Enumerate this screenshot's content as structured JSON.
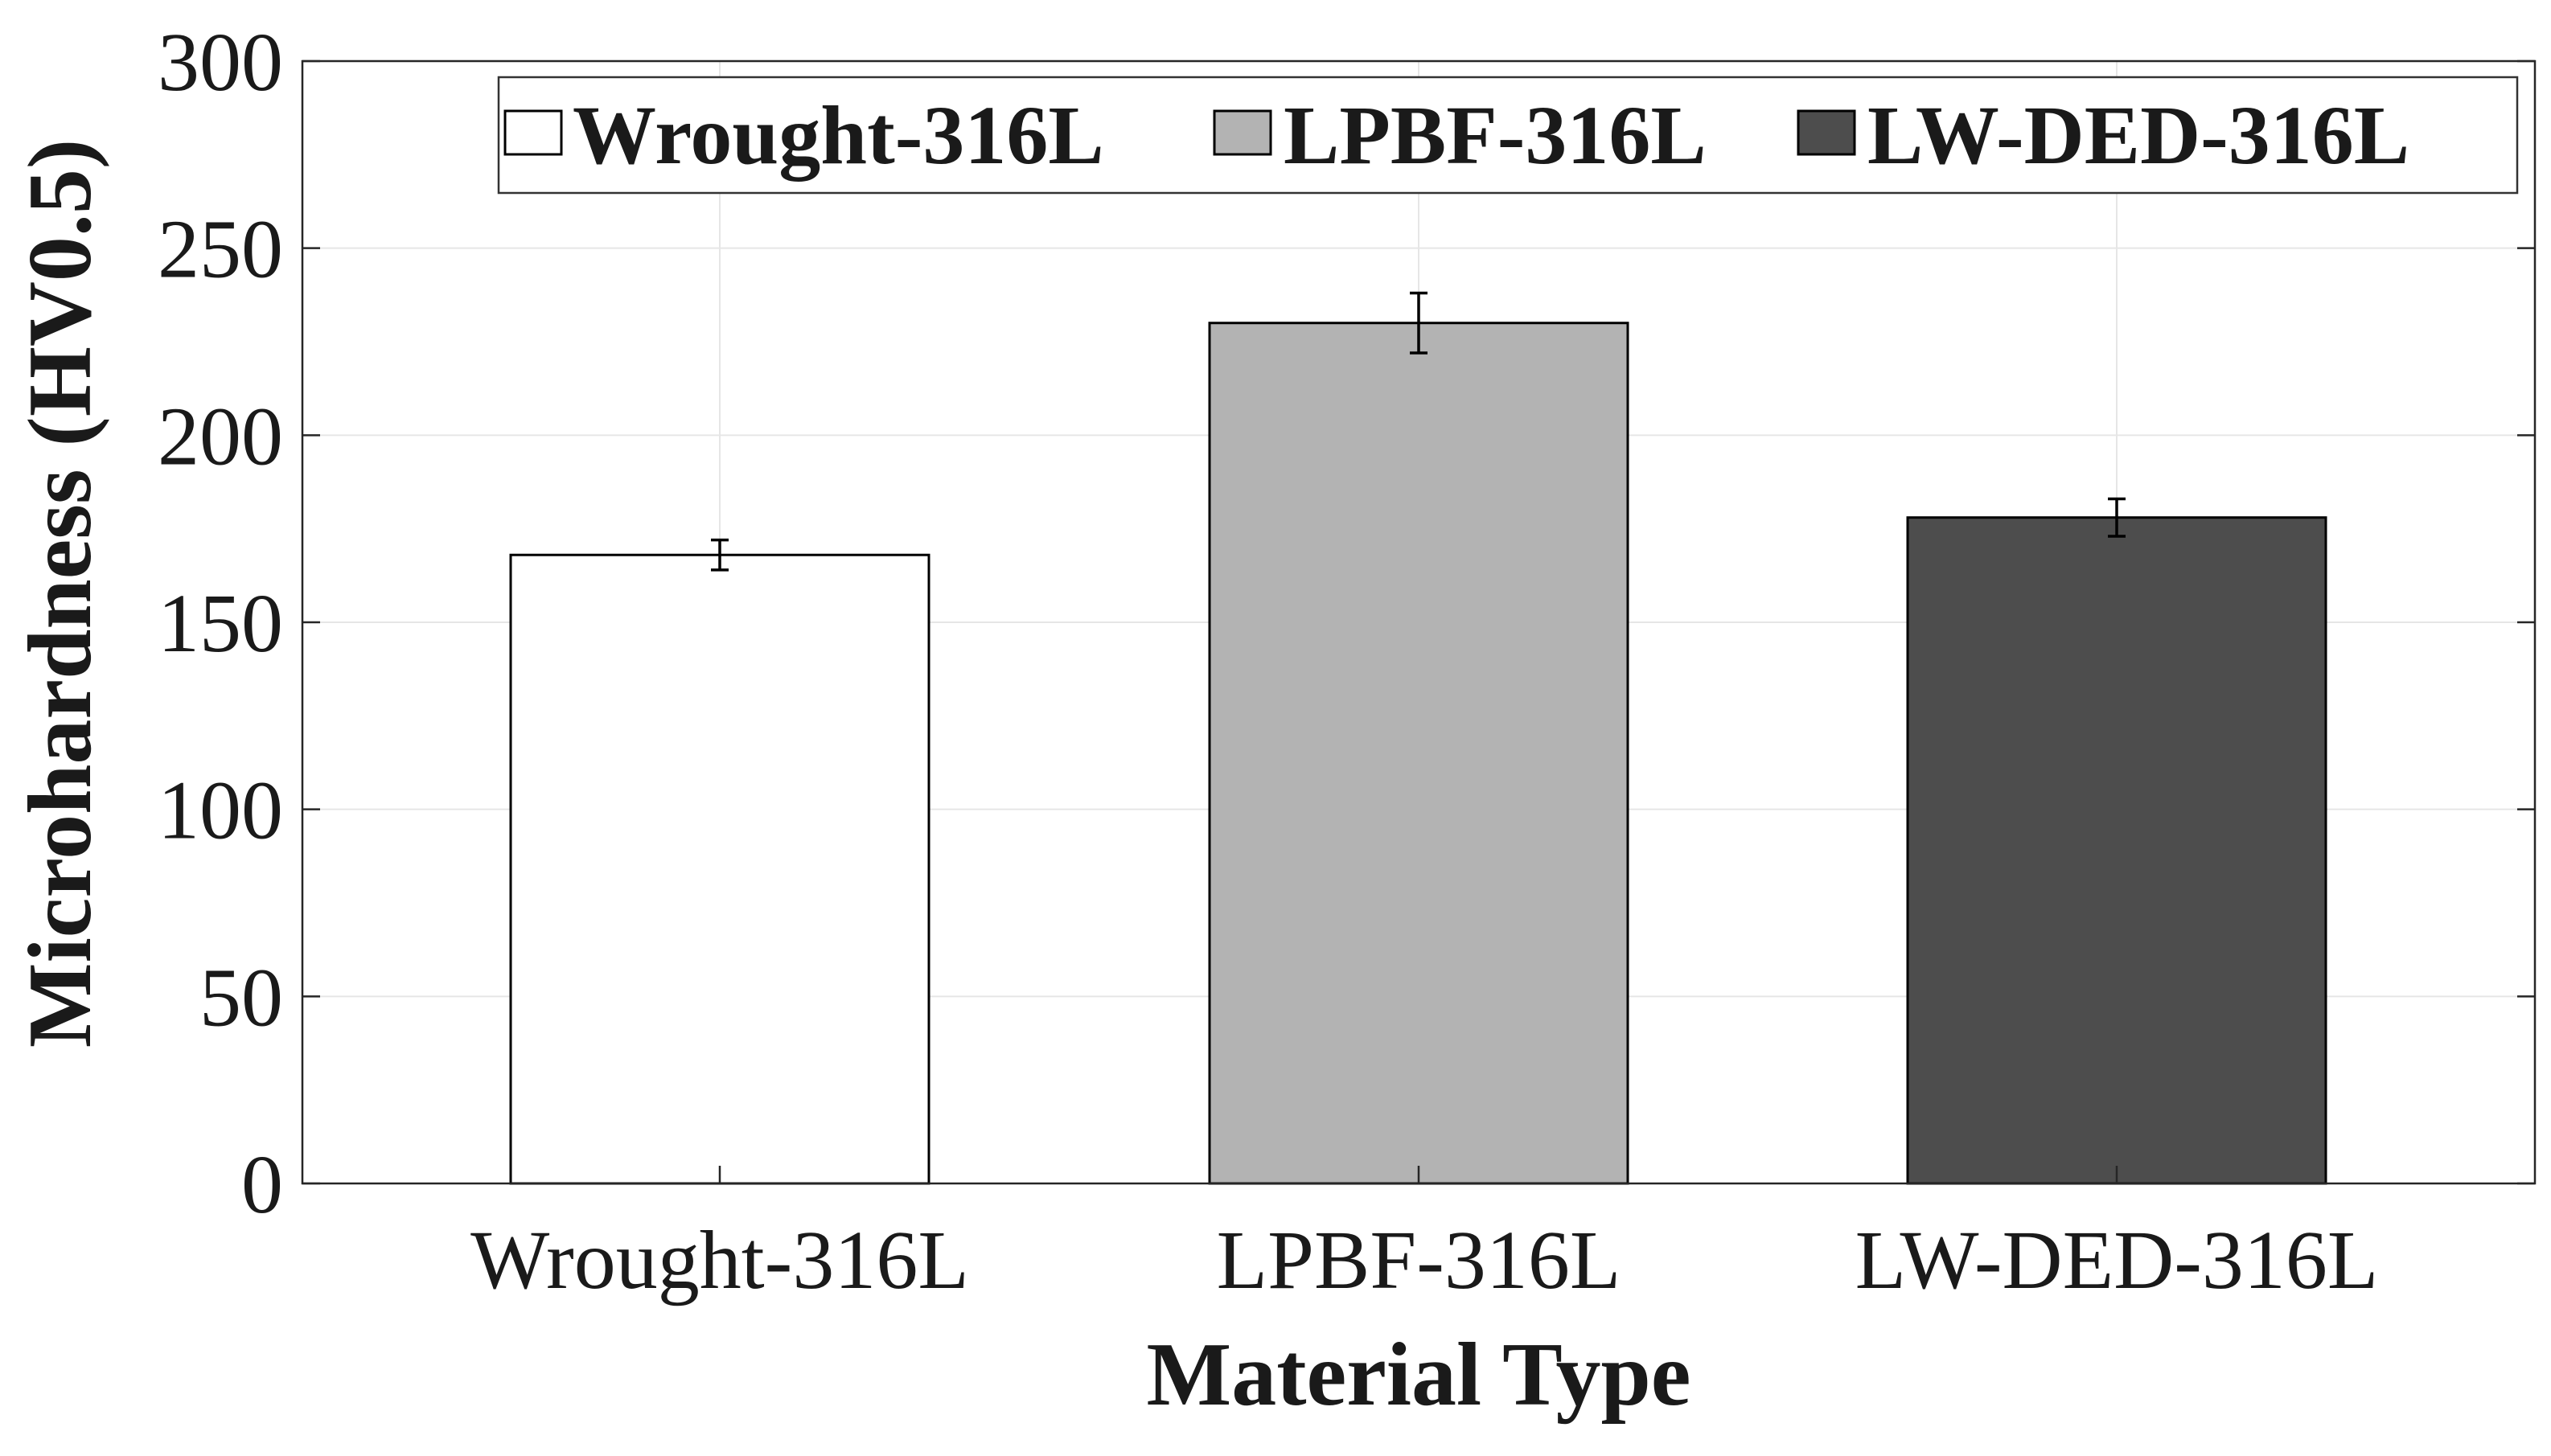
{
  "chart_data": {
    "type": "bar",
    "categories": [
      "Wrought-316L",
      "LPBF-316L",
      "LW-DED-316L"
    ],
    "values": [
      168,
      230,
      178
    ],
    "errors": [
      4,
      8,
      5
    ],
    "colors": [
      "#ffffff",
      "#b3b3b3",
      "#4d4d4d"
    ],
    "xlabel": "Material Type",
    "ylabel": "Microhardness (HV0.5)",
    "ylim": [
      0,
      300
    ],
    "yticks": [
      0,
      50,
      100,
      150,
      200,
      250,
      300
    ],
    "grid": true,
    "legend": {
      "placement": "top-right",
      "entries": [
        "Wrought-316L",
        "LPBF-316L",
        "LW-DED-316L"
      ]
    }
  }
}
